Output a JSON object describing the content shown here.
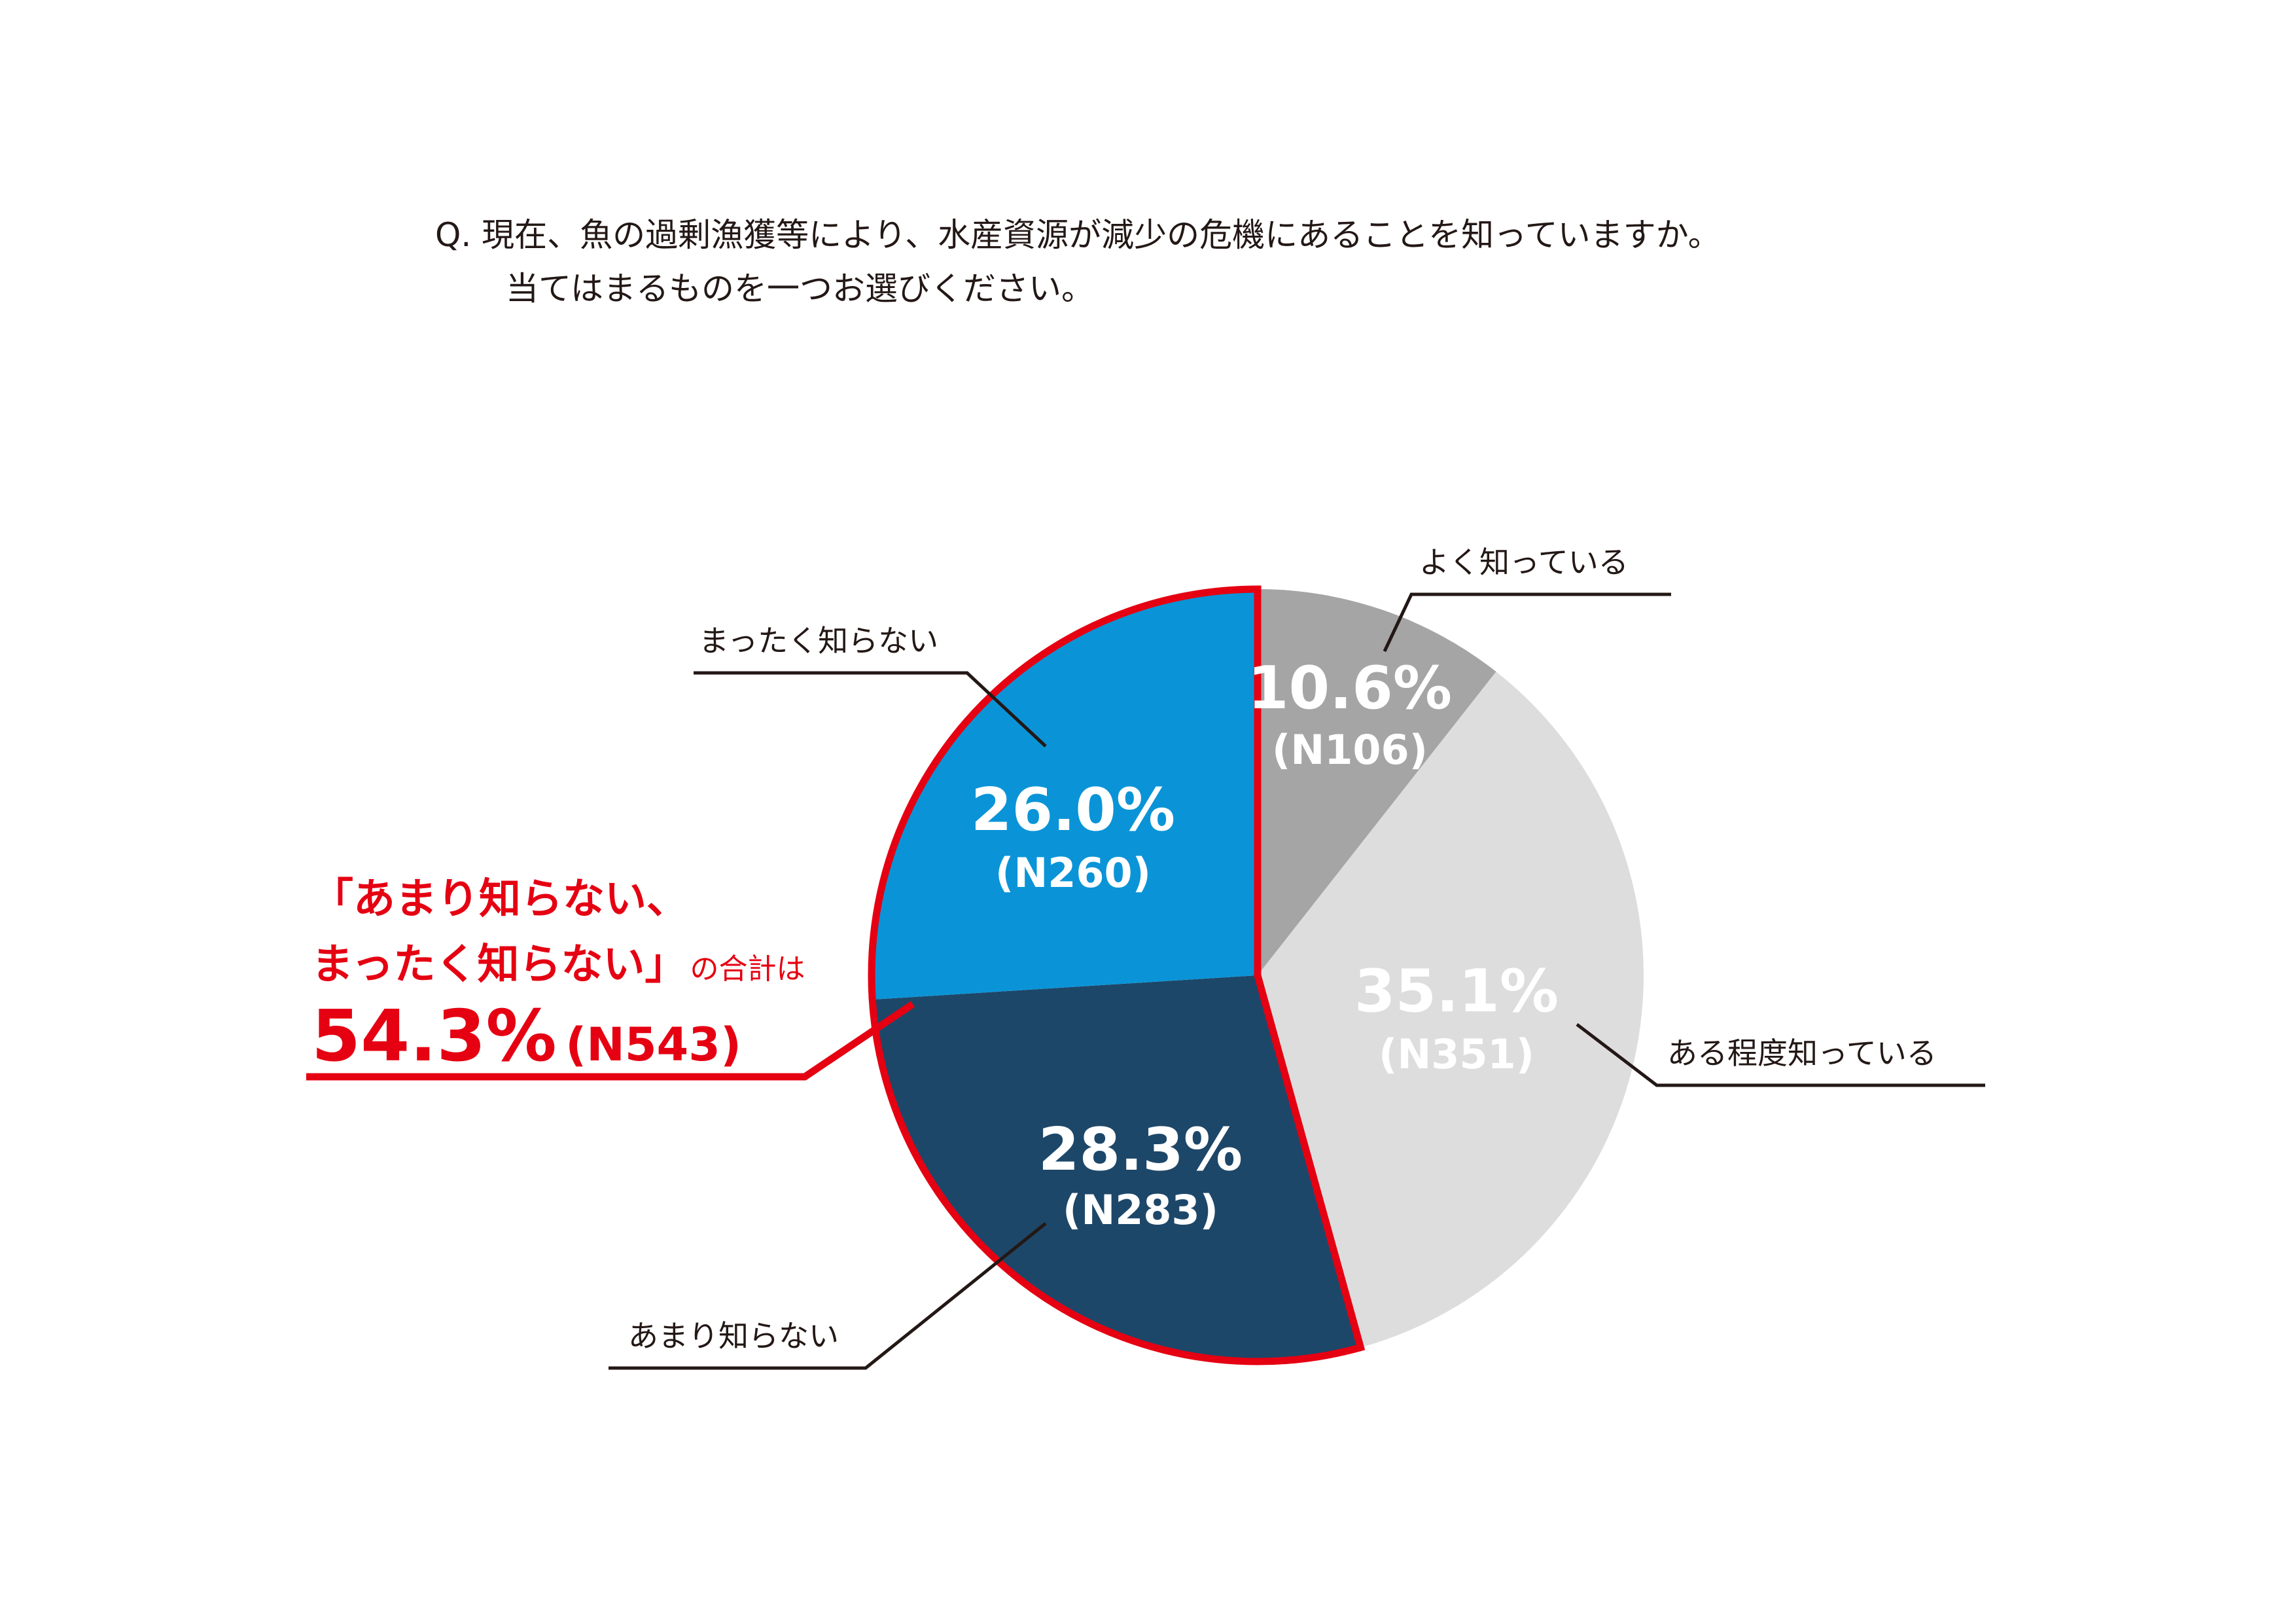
{
  "question": {
    "line1": "Q. 現在、魚の過剰漁獲等により、水産資源が減少の危機にあることを知っていますか。",
    "line2": "当てはまるものを一つお選びください。"
  },
  "callout": {
    "line1": "「あまり知らない、",
    "line2_bold": "まったく知らない」",
    "line2_rest": "の合計は",
    "total_pct": "54.3%",
    "total_n": "(N543)"
  },
  "colors": {
    "yoku": "#a5a5a5",
    "aru": "#dddddd",
    "amari": "#1d4769",
    "mattaku": "#0a94d7",
    "highlight": "#e50012",
    "leader": "#231815"
  },
  "chart_data": {
    "type": "pie",
    "start": "12 o'clock",
    "direction": "clockwise",
    "slices": [
      {
        "label": "よく知っている",
        "value": 10.6,
        "pct_label": "10.6%",
        "n_label": "(N106)",
        "color": "#a5a5a5"
      },
      {
        "label": "ある程度知っている",
        "value": 35.1,
        "pct_label": "35.1%",
        "n_label": "(N351)",
        "color": "#dddddd"
      },
      {
        "label": "あまり知らない",
        "value": 28.3,
        "pct_label": "28.3%",
        "n_label": "(N283)",
        "color": "#1d4769"
      },
      {
        "label": "まったく知らない",
        "value": 26.0,
        "pct_label": "26.0%",
        "n_label": "(N260)",
        "color": "#0a94d7"
      }
    ]
  }
}
